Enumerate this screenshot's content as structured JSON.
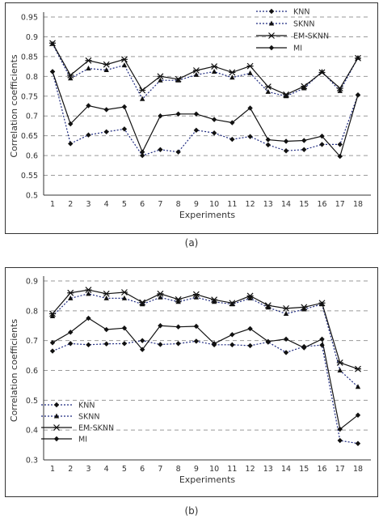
{
  "chart_data": [
    {
      "type": "line",
      "caption": "(a)",
      "xlabel": "Experiments",
      "ylabel": "Correlation coefficients",
      "categories": [
        "1",
        "2",
        "3",
        "4",
        "5",
        "6",
        "7",
        "8",
        "9",
        "10",
        "11",
        "12",
        "13",
        "14",
        "15",
        "16",
        "17",
        "18"
      ],
      "ylim": [
        0.5,
        0.95
      ],
      "yticks": [
        0.5,
        0.55,
        0.6,
        0.65,
        0.7,
        0.75,
        0.8,
        0.85,
        0.9,
        0.95
      ],
      "ytick_labels": [
        "0.5",
        "0.55",
        "0.6",
        "0.65",
        "0.7",
        "0.75",
        "0.8",
        "0.85",
        "0.9",
        "0.95"
      ],
      "grid": "horizontal dashed",
      "legend_position": "top-right",
      "series": [
        {
          "name": "KNN",
          "style": "dotted",
          "marker": "diamond",
          "values": [
            0.812,
            0.63,
            0.652,
            0.66,
            0.667,
            0.6,
            0.615,
            0.609,
            0.664,
            0.657,
            0.641,
            0.648,
            0.627,
            0.612,
            0.615,
            0.628,
            0.628,
            0.753
          ]
        },
        {
          "name": "SKNN",
          "style": "dotted",
          "marker": "triangle",
          "values": [
            0.882,
            0.795,
            0.82,
            0.816,
            0.828,
            0.743,
            0.79,
            0.79,
            0.804,
            0.812,
            0.797,
            0.808,
            0.761,
            0.75,
            0.77,
            0.812,
            0.763,
            0.847
          ]
        },
        {
          "name": "EM-SKNN",
          "style": "solid",
          "marker": "star",
          "values": [
            0.884,
            0.803,
            0.84,
            0.83,
            0.843,
            0.765,
            0.8,
            0.793,
            0.815,
            0.825,
            0.81,
            0.826,
            0.774,
            0.754,
            0.775,
            0.81,
            0.77,
            0.846
          ]
        },
        {
          "name": "MI",
          "style": "solid",
          "marker": "diamond",
          "values": [
            0.812,
            0.68,
            0.726,
            0.716,
            0.723,
            0.609,
            0.7,
            0.705,
            0.705,
            0.691,
            0.683,
            0.72,
            0.64,
            0.636,
            0.638,
            0.649,
            0.598,
            0.753
          ]
        }
      ]
    },
    {
      "type": "line",
      "caption": "(b)",
      "xlabel": "Experiments",
      "ylabel": "Correlation coefficients",
      "categories": [
        "1",
        "2",
        "3",
        "4",
        "5",
        "6",
        "7",
        "8",
        "9",
        "10",
        "11",
        "12",
        "13",
        "14",
        "15",
        "16",
        "17",
        "18"
      ],
      "ylim": [
        0.3,
        0.9
      ],
      "yticks": [
        0.3,
        0.4,
        0.5,
        0.6,
        0.7,
        0.8,
        0.9
      ],
      "ytick_labels": [
        "0.3",
        "0.4",
        "0.5",
        "0.6",
        "0.7",
        "0.8",
        "0.9"
      ],
      "grid": "horizontal dashed",
      "legend_position": "bottom-left",
      "series": [
        {
          "name": "KNN",
          "style": "dotted",
          "marker": "diamond",
          "values": [
            0.665,
            0.69,
            0.686,
            0.689,
            0.69,
            0.7,
            0.687,
            0.69,
            0.698,
            0.686,
            0.686,
            0.683,
            0.695,
            0.66,
            0.68,
            0.685,
            0.365,
            0.355
          ]
        },
        {
          "name": "SKNN",
          "style": "dotted",
          "marker": "triangle",
          "values": [
            0.782,
            0.842,
            0.857,
            0.842,
            0.842,
            0.822,
            0.845,
            0.83,
            0.845,
            0.83,
            0.822,
            0.842,
            0.811,
            0.79,
            0.805,
            0.822,
            0.6,
            0.545
          ]
        },
        {
          "name": "EM-SKNN",
          "style": "solid",
          "marker": "star",
          "values": [
            0.79,
            0.86,
            0.87,
            0.857,
            0.862,
            0.828,
            0.857,
            0.838,
            0.855,
            0.837,
            0.826,
            0.85,
            0.818,
            0.808,
            0.812,
            0.826,
            0.626,
            0.605
          ]
        },
        {
          "name": "MI",
          "style": "solid",
          "marker": "diamond",
          "values": [
            0.693,
            0.728,
            0.775,
            0.737,
            0.742,
            0.67,
            0.75,
            0.746,
            0.748,
            0.69,
            0.72,
            0.74,
            0.697,
            0.705,
            0.676,
            0.705,
            0.403,
            0.45
          ]
        }
      ]
    }
  ]
}
